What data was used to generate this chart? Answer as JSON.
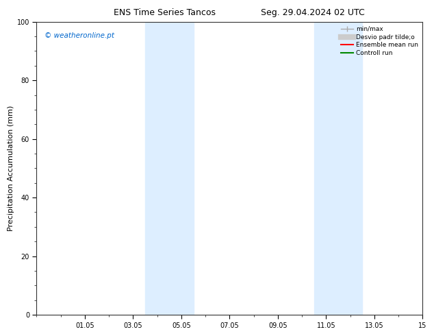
{
  "title_left": "ENS Time Series Tancos",
  "title_right": "Seg. 29.04.2024 02 UTC",
  "ylabel": "Precipitation Accumulation (mm)",
  "watermark": "© weatheronline.pt",
  "ylim": [
    0,
    100
  ],
  "yticks": [
    0,
    20,
    40,
    60,
    80,
    100
  ],
  "xlim": [
    0,
    16
  ],
  "xtick_positions": [
    2,
    4,
    6,
    8,
    10,
    12,
    14,
    16
  ],
  "xtick_labels": [
    "01.05",
    "03.05",
    "05.05",
    "07.05",
    "09.05",
    "11.05",
    "13.05",
    "15"
  ],
  "band1_xmin": 4.5,
  "band1_xmax": 6.5,
  "band2_xmin": 11.5,
  "band2_xmax": 13.5,
  "band_color": "#ddeeff",
  "background_color": "#ffffff",
  "legend_labels": [
    "min/max",
    "Desvio padr tilde;o",
    "Ensemble mean run",
    "Controll run"
  ],
  "legend_colors": [
    "#aaaaaa",
    "#cccccc",
    "#ff0000",
    "#008800"
  ],
  "watermark_color": "#0066cc",
  "title_fontsize": 9,
  "axis_fontsize": 7,
  "ylabel_fontsize": 8
}
